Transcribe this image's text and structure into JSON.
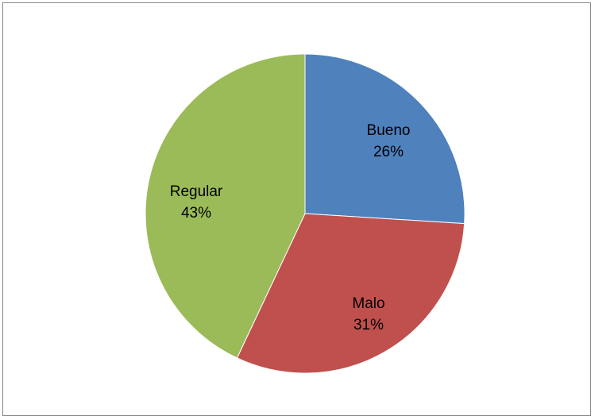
{
  "chart_data": {
    "type": "pie",
    "title": "",
    "slices": [
      {
        "label": "Bueno",
        "value": 26,
        "percent_label": "26%",
        "color": "#4f81bd"
      },
      {
        "label": "Malo",
        "value": 31,
        "percent_label": "31%",
        "color": "#c0504d"
      },
      {
        "label": "Regular",
        "value": 43,
        "percent_label": "43%",
        "color": "#9bbb59"
      }
    ],
    "start_angle": "12 o'clock",
    "direction": "clockwise",
    "legend": "none",
    "data_labels": "category and percent inside slices"
  }
}
